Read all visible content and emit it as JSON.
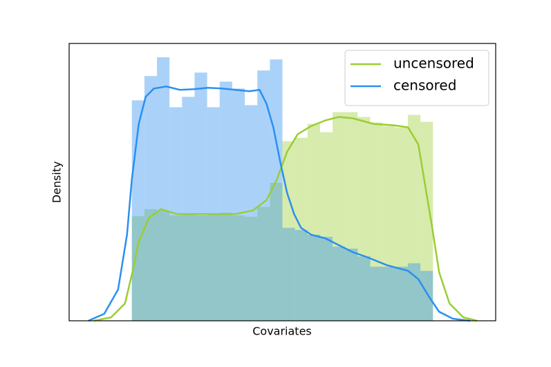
{
  "chart_data": {
    "type": "histogram",
    "xlabel": "Covariates",
    "ylabel": "Density",
    "xlim": [
      -5,
      29
    ],
    "ylim": [
      0,
      4.0
    ],
    "legend": "upper right",
    "bins": [
      0,
      1,
      2,
      3,
      4,
      5,
      6,
      7,
      8,
      9,
      10,
      11,
      12,
      13,
      14,
      15,
      16,
      17,
      18,
      19,
      20,
      21,
      22,
      23,
      24
    ],
    "series": [
      {
        "name": "uncensored",
        "color": "#9acd32",
        "hist_alpha": 0.4,
        "values": [
          1.51,
          1.61,
          1.59,
          1.52,
          1.54,
          1.52,
          1.54,
          1.56,
          1.52,
          1.5,
          1.64,
          1.99,
          2.59,
          2.64,
          2.84,
          2.72,
          3.01,
          3.01,
          2.94,
          2.86,
          2.81,
          2.79,
          2.97,
          2.87
        ],
        "kde_x": [
          -3.03,
          -1.65,
          -0.55,
          0.11,
          0.55,
          1.38,
          2.31,
          3.58,
          4.95,
          6.6,
          8.26,
          9.63,
          10.73,
          11.56,
          12.38,
          13.21,
          14.31,
          15.41,
          16.51,
          17.61,
          19.26,
          20.91,
          22.01,
          22.84,
          23.39,
          23.94,
          24.49,
          25.32,
          26.42,
          27.52
        ],
        "kde_y": [
          0,
          0.05,
          0.25,
          0.75,
          1.14,
          1.49,
          1.61,
          1.54,
          1.54,
          1.54,
          1.54,
          1.59,
          1.74,
          2.04,
          2.44,
          2.69,
          2.81,
          2.89,
          2.94,
          2.92,
          2.84,
          2.82,
          2.79,
          2.54,
          1.94,
          1.34,
          0.7,
          0.25,
          0.05,
          0
        ]
      },
      {
        "name": "censored",
        "color": "#2a8ff0",
        "hist_alpha": 0.4,
        "values": [
          3.18,
          3.53,
          3.8,
          3.08,
          3.23,
          3.58,
          3.08,
          3.45,
          3.35,
          3.11,
          3.61,
          3.77,
          1.34,
          1.31,
          1.24,
          1.21,
          1.07,
          1.04,
          0.93,
          0.78,
          0.78,
          0.78,
          0.83,
          0.72
        ],
        "kde_x": [
          -3.47,
          -2.2,
          -1.1,
          -0.39,
          0,
          0.55,
          1.1,
          1.76,
          2.75,
          3.85,
          4.95,
          6.05,
          7.15,
          8.26,
          9.36,
          10.18,
          10.73,
          11.28,
          11.83,
          12.38,
          12.93,
          13.48,
          14.31,
          15.41,
          16.51,
          17.61,
          18.71,
          20.36,
          22.01,
          22.84,
          23.67,
          24.49,
          25.59,
          26.97
        ],
        "kde_y": [
          0,
          0.1,
          0.45,
          1.24,
          2.04,
          2.84,
          3.23,
          3.35,
          3.38,
          3.33,
          3.34,
          3.36,
          3.35,
          3.33,
          3.31,
          3.33,
          3.13,
          2.79,
          2.29,
          1.84,
          1.54,
          1.34,
          1.24,
          1.19,
          1.09,
          0.99,
          0.92,
          0.8,
          0.72,
          0.6,
          0.35,
          0.13,
          0.03,
          0
        ]
      }
    ]
  }
}
